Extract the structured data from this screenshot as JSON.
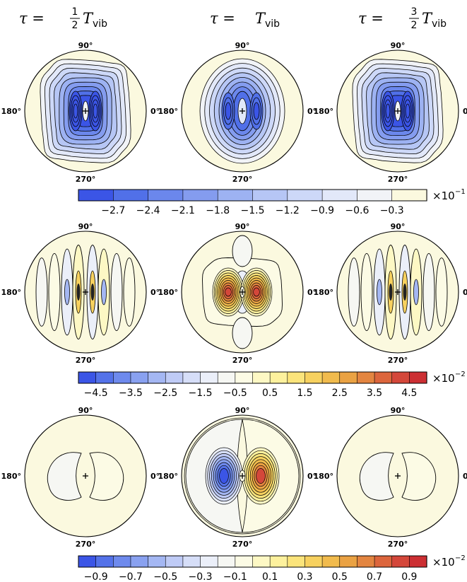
{
  "columns": [
    {
      "label_prefix": "τ = ",
      "frac_num": "1",
      "frac_den": "2",
      "label_T": "T",
      "label_sub": "vib"
    },
    {
      "label_prefix": "τ = ",
      "frac_num": "",
      "frac_den": "",
      "label_T": "T",
      "label_sub": "vib"
    },
    {
      "label_prefix": "τ = ",
      "frac_num": "3",
      "frac_den": "2",
      "label_T": "T",
      "label_sub": "vib"
    }
  ],
  "angle_labels": {
    "top": "90°",
    "left": "180°",
    "right": "0°",
    "bottom": "270°"
  },
  "chart_data": [
    {
      "type": "contour-colorbar",
      "row": 1,
      "multiplier_base": "×10",
      "multiplier_exp": "−1",
      "tick_labels": [
        "−2.7",
        "−2.4",
        "−2.1",
        "−1.8",
        "−1.5",
        "−1.2",
        "−0.9",
        "−0.6",
        "−0.3"
      ],
      "bin_colors": [
        "#3b55e6",
        "#5170e8",
        "#6b87ec",
        "#849cef",
        "#9db2f2",
        "#b6c6f5",
        "#cdd8f8",
        "#e2e8f9",
        "#f1f3f7",
        "#fbf9df"
      ]
    },
    {
      "type": "contour-colorbar",
      "row": 2,
      "multiplier_base": "×10",
      "multiplier_exp": "−2",
      "tick_labels": [
        "−4.5",
        "−3.5",
        "−2.5",
        "−1.5",
        "−0.5",
        "0.5",
        "1.5",
        "2.5",
        "3.5",
        "4.5"
      ],
      "bin_colors": [
        "#3b55e6",
        "#5472e9",
        "#6e8aed",
        "#89a1f0",
        "#a4b7f3",
        "#bfcbf6",
        "#d6def8",
        "#ebeff9",
        "#f6f7f3",
        "#fcfbe5",
        "#fdf8c4",
        "#fdf19d",
        "#fbe47b",
        "#f7d15f",
        "#f1bb4d",
        "#eaa243",
        "#e38540",
        "#dc653c",
        "#d4473a",
        "#cc2f33"
      ]
    },
    {
      "type": "contour-colorbar",
      "row": 3,
      "multiplier_base": "×10",
      "multiplier_exp": "−2",
      "tick_labels": [
        "−0.9",
        "−0.7",
        "−0.5",
        "−0.3",
        "−0.1",
        "0.1",
        "0.3",
        "0.5",
        "0.7",
        "0.9"
      ],
      "bin_colors": [
        "#3b55e6",
        "#5472e9",
        "#6e8aed",
        "#89a1f0",
        "#a4b7f3",
        "#bfcbf6",
        "#d6def8",
        "#ebeff9",
        "#f6f7f3",
        "#fcfbe5",
        "#fdf8c4",
        "#fdf19d",
        "#fbe47b",
        "#f7d15f",
        "#f1bb4d",
        "#eaa243",
        "#e38540",
        "#dc653c",
        "#d4473a",
        "#cc2f33"
      ]
    }
  ]
}
